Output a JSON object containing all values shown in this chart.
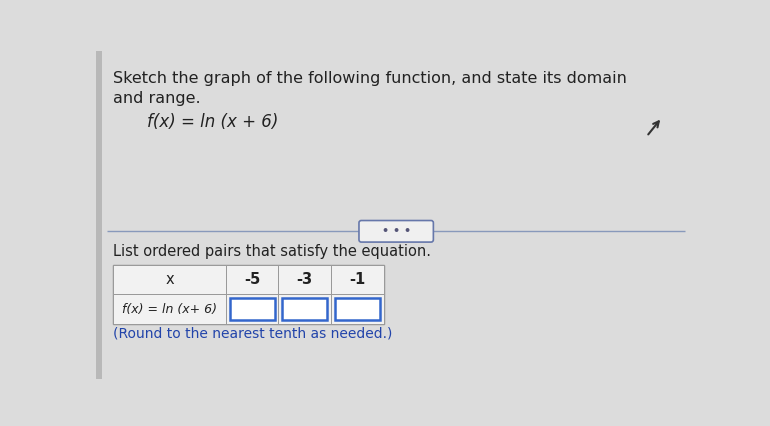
{
  "title_line1": "Sketch the graph of the following function, and state its domain",
  "title_line2": "and range.",
  "function_label": "f(x) = ln (x + 6)",
  "divider_dots": "• • •",
  "subtitle": "List ordered pairs that satisfy the equation.",
  "x_label": "x",
  "row_label": "f(x) = ln (x+ 6)",
  "x_values": [
    "-5",
    "-3",
    "-1"
  ],
  "footnote": "(Round to the nearest tenth as needed.)",
  "bg_color": "#dcdcdc",
  "panel_color": "#e8e8e8",
  "text_color": "#222222",
  "table_bg_color": "#f2f2f2",
  "table_cell_color": "#f5f5f5",
  "box_stroke_color": "#3366cc",
  "box_fill_color": "#ffffff",
  "divider_color": "#8899bb",
  "divider_btn_edge": "#6677aa",
  "divider_btn_face": "#f0f0f0",
  "left_strip_color": "#b8b8b8",
  "font_size_title": 11.5,
  "font_size_function": 12,
  "font_size_table": 10.5,
  "font_size_footnote": 10,
  "footnote_color": "#2244aa"
}
